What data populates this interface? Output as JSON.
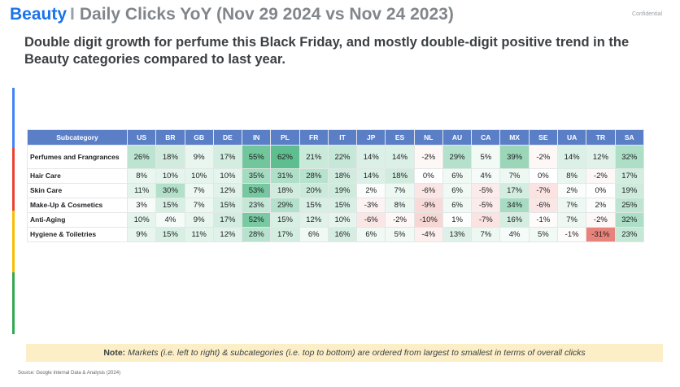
{
  "header": {
    "brand": "Beauty",
    "separator": "I",
    "title": "Daily Clicks YoY (Nov 29 2024 vs Nov 24 2023)",
    "confidential": "Confidential"
  },
  "subtitle": "Double digit growth for perfume this Black Friday, and mostly double-digit positive trend in the Beauty categories compared to last year.",
  "table": {
    "header": [
      "Subcategory",
      "US",
      "BR",
      "GB",
      "DE",
      "IN",
      "PL",
      "FR",
      "IT",
      "JP",
      "ES",
      "NL",
      "AU",
      "CA",
      "MX",
      "SE",
      "UA",
      "TR",
      "SA"
    ],
    "rows": [
      {
        "label": "Perfumes and Frangrances",
        "values": [
          26,
          18,
          9,
          17,
          55,
          62,
          21,
          22,
          14,
          14,
          -2,
          29,
          5,
          39,
          -2,
          14,
          12,
          32
        ]
      },
      {
        "label": "Hair Care",
        "values": [
          8,
          10,
          10,
          10,
          35,
          31,
          28,
          18,
          14,
          18,
          0,
          6,
          4,
          7,
          0,
          8,
          -2,
          17
        ]
      },
      {
        "label": "Skin Care",
        "values": [
          11,
          30,
          7,
          12,
          53,
          18,
          20,
          19,
          2,
          7,
          -6,
          6,
          -5,
          17,
          -7,
          2,
          0,
          19
        ]
      },
      {
        "label": "Make-Up & Cosmetics",
        "values": [
          3,
          15,
          7,
          15,
          23,
          29,
          15,
          15,
          -3,
          8,
          -9,
          6,
          -5,
          34,
          -6,
          7,
          2,
          25
        ]
      },
      {
        "label": "Anti-Aging",
        "values": [
          10,
          4,
          9,
          17,
          52,
          15,
          12,
          10,
          -6,
          -2,
          -10,
          1,
          -7,
          16,
          -1,
          7,
          -2,
          32
        ]
      },
      {
        "label": "Hygiene & Toiletries",
        "values": [
          9,
          15,
          11,
          12,
          28,
          17,
          6,
          16,
          6,
          5,
          -4,
          13,
          7,
          4,
          5,
          -1,
          -31,
          23
        ]
      }
    ],
    "colors": {
      "header_bg": "#5b7fc7",
      "positive_max": "#57bb8a",
      "neutral": "#ffffff",
      "negative_max": "#e67c73"
    }
  },
  "note": {
    "label": "Note:",
    "text": "Markets (i.e. left to right) & subcategories (i.e. top to bottom) are ordered from largest to smallest in terms of overall clicks"
  },
  "source": "Source: Google Internal Data & Analysis (2024)"
}
